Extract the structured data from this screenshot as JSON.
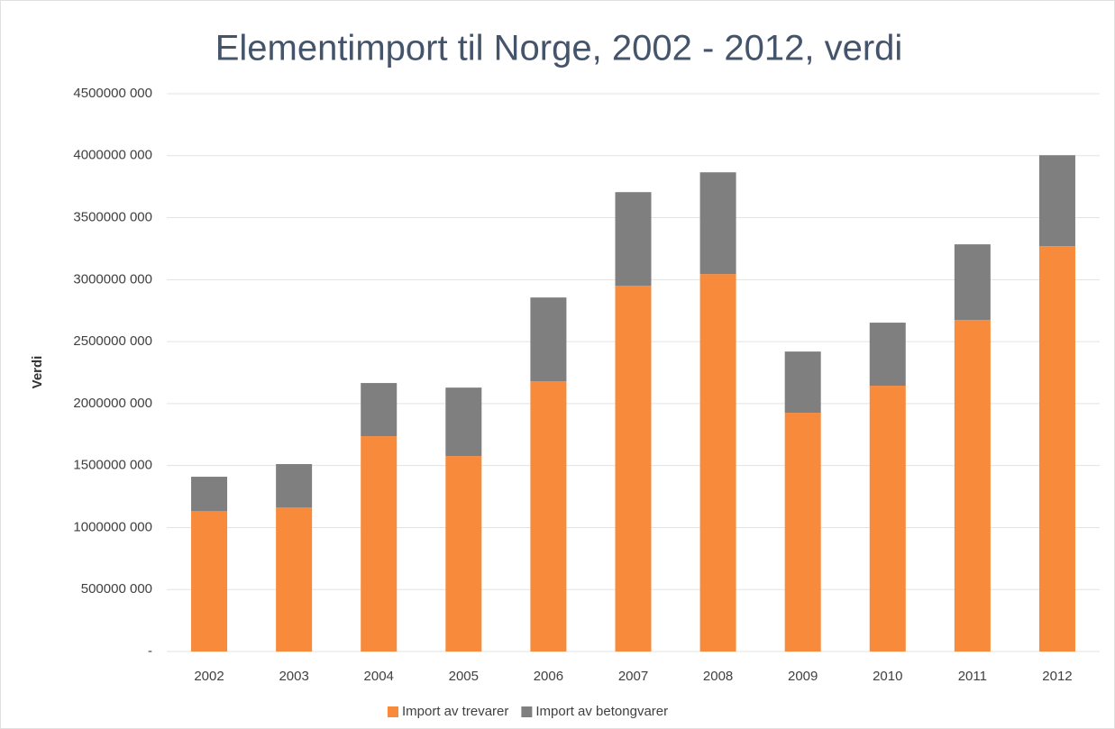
{
  "chart_data": {
    "type": "stacked_bar",
    "title": "Elementimport til Norge, 2002 - 2012, verdi",
    "ylabel": "Verdi",
    "categories": [
      "2002",
      "2003",
      "2004",
      "2005",
      "2006",
      "2007",
      "2008",
      "2009",
      "2010",
      "2011",
      "2012"
    ],
    "series": [
      {
        "name": "Import av trevarer",
        "color": "#f78a3b",
        "values": [
          1134000000,
          1163000000,
          1737000000,
          1577000000,
          2180000000,
          2951000000,
          3045000000,
          1926000000,
          2144000000,
          2674000000,
          3270000000
        ]
      },
      {
        "name": "Import av betongvarer",
        "color": "#7f7f7f",
        "values": [
          276000000,
          349000000,
          429000000,
          552000000,
          676000000,
          755000000,
          821000000,
          494000000,
          509000000,
          611000000,
          734000000
        ]
      }
    ],
    "ylim": [
      0,
      4500000000
    ],
    "yticks": [
      {
        "value": 0,
        "label": "-"
      },
      {
        "value": 500000000,
        "label": "500000 000"
      },
      {
        "value": 1000000000,
        "label": "1000000 000"
      },
      {
        "value": 1500000000,
        "label": "1500000 000"
      },
      {
        "value": 2000000000,
        "label": "2000000 000"
      },
      {
        "value": 2500000000,
        "label": "2500000 000"
      },
      {
        "value": 3000000000,
        "label": "3000000 000"
      },
      {
        "value": 3500000000,
        "label": "3500000 000"
      },
      {
        "value": 4000000000,
        "label": "4000000 000"
      },
      {
        "value": 4500000000,
        "label": "4500000 000"
      }
    ],
    "grid": true,
    "legend": "bottom"
  }
}
